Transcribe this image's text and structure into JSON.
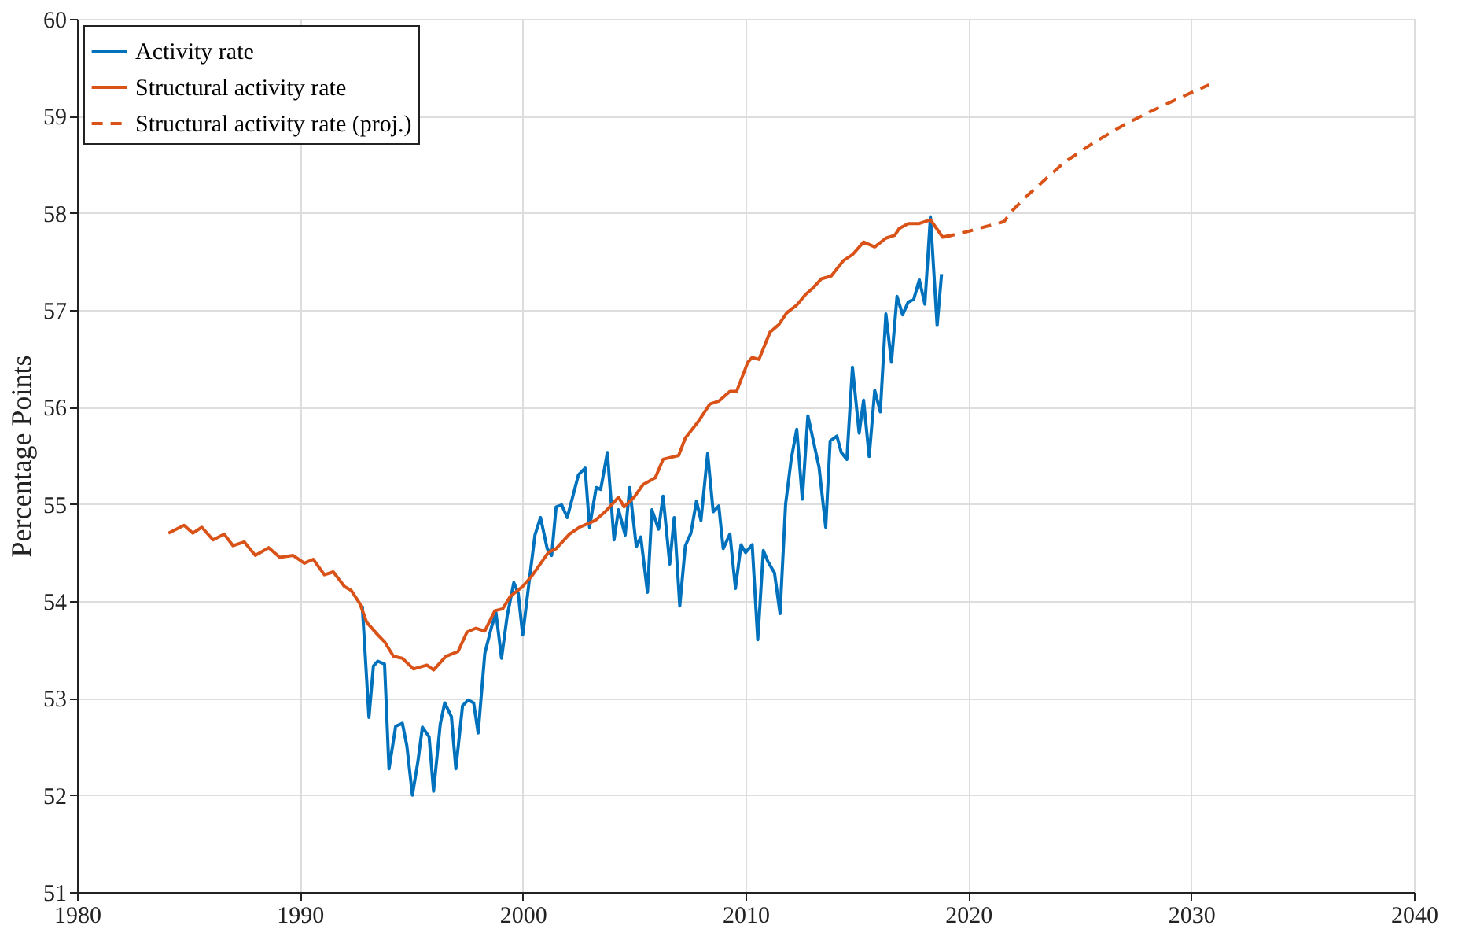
{
  "chart_data": {
    "type": "line",
    "ylabel": "Percentage Points",
    "xlim": [
      1980,
      2040
    ],
    "xticks": [
      1980,
      1990,
      2000,
      2010,
      2020,
      2030,
      2040
    ],
    "ylim": [
      51,
      60
    ],
    "yticks": [
      51,
      52,
      53,
      54,
      55,
      56,
      57,
      58,
      59,
      60
    ],
    "grid": true,
    "legend": "top left",
    "marker": "none",
    "series": [
      {
        "name": "Activity rate",
        "color": "#0072bd",
        "line_style": "solid",
        "x": [
          1992.8,
          1993.1,
          1993.3,
          1993.5,
          1993.8,
          1994.0,
          1994.3,
          1994.6,
          1994.8,
          1995.05,
          1995.3,
          1995.5,
          1995.8,
          1996.0,
          1996.3,
          1996.5,
          1996.8,
          1997.0,
          1997.3,
          1997.55,
          1997.8,
          1998.0,
          1998.3,
          1998.6,
          1998.8,
          1999.05,
          1999.3,
          1999.6,
          1999.8,
          2000.0,
          2000.3,
          2000.55,
          2000.8,
          2001.1,
          2001.3,
          2001.5,
          2001.75,
          2002.0,
          2002.5,
          2002.8,
          2003.0,
          2003.3,
          2003.5,
          2003.8,
          2004.1,
          2004.3,
          2004.6,
          2004.8,
          2005.1,
          2005.3,
          2005.6,
          2005.8,
          2006.1,
          2006.3,
          2006.6,
          2006.8,
          2007.05,
          2007.3,
          2007.55,
          2007.8,
          2008.0,
          2008.3,
          2008.55,
          2008.8,
          2009.0,
          2009.3,
          2009.55,
          2009.8,
          2010.0,
          2010.3,
          2010.55,
          2010.8,
          2011.0,
          2011.3,
          2011.55,
          2011.8,
          2012.05,
          2012.3,
          2012.55,
          2012.8,
          2013.3,
          2013.6,
          2013.8,
          2014.1,
          2014.3,
          2014.55,
          2014.8,
          2015.1,
          2015.3,
          2015.55,
          2015.8,
          2016.05,
          2016.3,
          2016.55,
          2016.8,
          2017.05,
          2017.3,
          2017.55,
          2017.8,
          2018.05,
          2018.3,
          2018.6,
          2018.8
        ],
        "values": [
          53.95,
          52.8,
          53.33,
          53.38,
          53.35,
          52.27,
          52.71,
          52.74,
          52.51,
          52.0,
          52.35,
          52.7,
          52.6,
          52.04,
          52.73,
          52.95,
          52.81,
          52.27,
          52.92,
          52.98,
          52.95,
          52.64,
          53.46,
          53.73,
          53.88,
          53.41,
          53.84,
          54.19,
          54.08,
          53.65,
          54.22,
          54.68,
          54.86,
          54.54,
          54.47,
          54.97,
          54.99,
          54.86,
          55.3,
          55.37,
          54.76,
          55.17,
          55.15,
          55.53,
          54.63,
          54.94,
          54.68,
          55.17,
          54.56,
          54.66,
          54.09,
          54.94,
          54.74,
          55.08,
          54.38,
          54.86,
          53.95,
          54.57,
          54.7,
          55.03,
          54.83,
          55.52,
          54.92,
          54.98,
          54.54,
          54.69,
          54.13,
          54.58,
          54.5,
          54.58,
          53.6,
          54.52,
          54.41,
          54.29,
          53.87,
          55.0,
          55.46,
          55.77,
          55.05,
          55.91,
          55.38,
          54.76,
          55.65,
          55.7,
          55.53,
          55.46,
          56.41,
          55.73,
          56.07,
          55.49,
          56.17,
          55.95,
          56.96,
          56.46,
          57.14,
          56.95,
          57.08,
          57.11,
          57.31,
          57.06,
          57.96,
          56.84,
          57.37
        ]
      },
      {
        "name": "Structural activity rate",
        "color": "#d95319",
        "line_style": "solid",
        "x": [
          1984.1,
          1984.8,
          1985.2,
          1985.6,
          1986.1,
          1986.6,
          1987.0,
          1987.5,
          1988.0,
          1988.6,
          1989.1,
          1989.7,
          1990.2,
          1990.6,
          1991.1,
          1991.5,
          1992.0,
          1992.3,
          1992.7,
          1993.0,
          1993.5,
          1993.8,
          1994.2,
          1994.6,
          1995.1,
          1995.7,
          1996.0,
          1996.55,
          1997.1,
          1997.5,
          1997.9,
          1998.3,
          1998.75,
          1999.1,
          1999.45,
          2000.0,
          2000.45,
          2001.15,
          2001.5,
          2002.1,
          2002.55,
          2003.25,
          2003.7,
          2004.3,
          2004.55,
          2005.0,
          2005.4,
          2005.95,
          2006.3,
          2007.0,
          2007.3,
          2007.85,
          2008.4,
          2008.8,
          2009.3,
          2009.6,
          2010.1,
          2010.3,
          2010.6,
          2011.1,
          2011.5,
          2011.85,
          2012.3,
          2012.7,
          2013.0,
          2013.4,
          2013.85,
          2014.4,
          2014.8,
          2015.3,
          2015.8,
          2016.3,
          2016.7,
          2016.9,
          2017.3,
          2017.8,
          2018.3,
          2018.85,
          2019.25
        ],
        "values": [
          54.7,
          54.78,
          54.7,
          54.76,
          54.63,
          54.69,
          54.57,
          54.61,
          54.47,
          54.55,
          54.45,
          54.47,
          54.39,
          54.43,
          54.27,
          54.3,
          54.15,
          54.11,
          53.97,
          53.78,
          53.65,
          53.58,
          53.43,
          53.41,
          53.3,
          53.34,
          53.29,
          53.43,
          53.48,
          53.68,
          53.72,
          53.69,
          53.9,
          53.92,
          54.05,
          54.15,
          54.27,
          54.5,
          54.54,
          54.69,
          54.76,
          54.83,
          54.92,
          55.07,
          54.97,
          55.07,
          55.2,
          55.27,
          55.46,
          55.5,
          55.68,
          55.84,
          56.03,
          56.06,
          56.16,
          56.16,
          56.46,
          56.51,
          56.49,
          56.77,
          56.85,
          56.97,
          57.05,
          57.16,
          57.22,
          57.32,
          57.35,
          57.51,
          57.57,
          57.7,
          57.65,
          57.74,
          57.77,
          57.84,
          57.89,
          57.89,
          57.93,
          57.75,
          57.77
        ]
      },
      {
        "name": "Structural activity rate (proj.)",
        "color": "#d95319",
        "line_style": "dashed",
        "x": [
          2018.9,
          2020.0,
          2021.6,
          2022.0,
          2022.7,
          2024.3,
          2025.6,
          2027.0,
          2028.4,
          2030.1,
          2030.8
        ],
        "values": [
          57.75,
          57.81,
          57.91,
          58.03,
          58.19,
          58.52,
          58.72,
          58.91,
          59.07,
          59.25,
          59.32
        ]
      }
    ]
  }
}
